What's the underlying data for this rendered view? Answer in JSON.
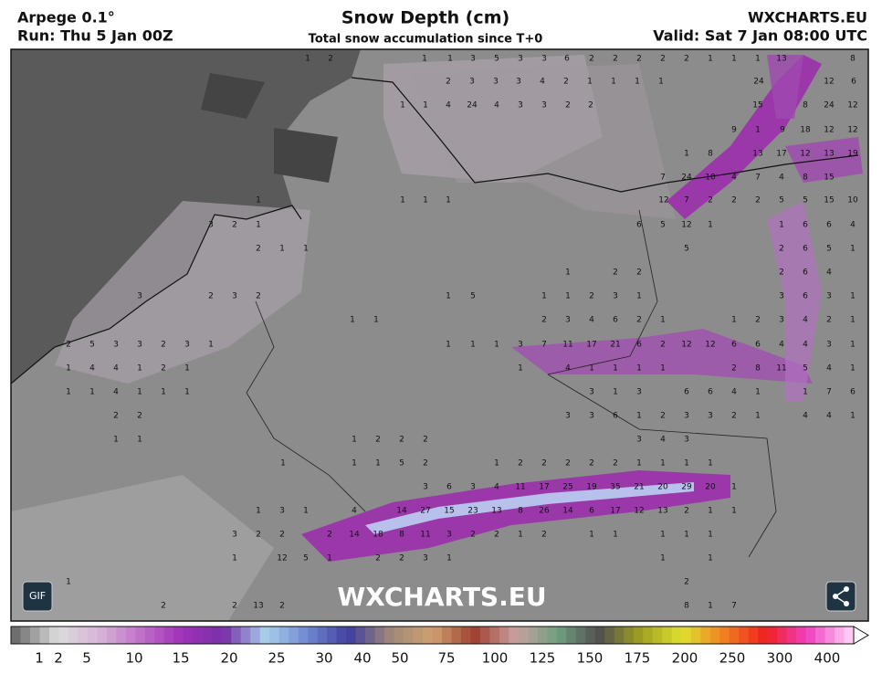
{
  "header": {
    "model": "Arpege 0.1°",
    "run": "Run: Thu 5 Jan 00Z",
    "title": "Snow Depth (cm)",
    "subtitle": "Total snow accumulation since T+0",
    "site": "WXCHARTS.EU",
    "valid": "Valid: Sat 7 Jan 08:00 UTC"
  },
  "map": {
    "watermark": "WXCHARTS.EU",
    "labels": [
      [
        1,
        2,
        1,
        1,
        3,
        5,
        3,
        3,
        6,
        2,
        2,
        2,
        2,
        2,
        1,
        1,
        1,
        13,
        8
      ],
      [
        2,
        3,
        3,
        3,
        4,
        2,
        1,
        1,
        1,
        1,
        24,
        12,
        6
      ],
      [
        1,
        1,
        4,
        24,
        4,
        3,
        3,
        2,
        2,
        15,
        8,
        24,
        12
      ],
      [
        9,
        1,
        9,
        18,
        12,
        12
      ],
      [
        1,
        8,
        13,
        17,
        12,
        13,
        19
      ],
      [
        7,
        24,
        10,
        4,
        7,
        4,
        8,
        15
      ],
      [
        1,
        1,
        1,
        1,
        12,
        7,
        2,
        2,
        2,
        5,
        5,
        15,
        10
      ],
      [
        3,
        2,
        1,
        6,
        5,
        12,
        1,
        1,
        6,
        6,
        4
      ],
      [
        2,
        1,
        1,
        5,
        2,
        6,
        5,
        1
      ],
      [
        1,
        2,
        2,
        2,
        6,
        4
      ],
      [
        3,
        2,
        3,
        2,
        1,
        5,
        1,
        1,
        2,
        3,
        1,
        3,
        6,
        3,
        1
      ],
      [
        1,
        1,
        2,
        3,
        4,
        6,
        2,
        1,
        1,
        2,
        3,
        4,
        2,
        1
      ],
      [
        2,
        5,
        3,
        3,
        2,
        3,
        1,
        1,
        1,
        1,
        3,
        7,
        11,
        17,
        21,
        6,
        2,
        12,
        12,
        6,
        6,
        4,
        4,
        3,
        1
      ],
      [
        1,
        4,
        4,
        1,
        2,
        1,
        1,
        4,
        1,
        1,
        1,
        1,
        2,
        8,
        11,
        5,
        4,
        1
      ],
      [
        1,
        1,
        4,
        1,
        1,
        1,
        3,
        1,
        3,
        6,
        6,
        4,
        1,
        1,
        7,
        6
      ],
      [
        2,
        2,
        3,
        3,
        6,
        1,
        2,
        3,
        3,
        2,
        1,
        4,
        4,
        1
      ],
      [
        1,
        1,
        1,
        2,
        2,
        2,
        3,
        4,
        3
      ],
      [
        1,
        1,
        1,
        5,
        2,
        1,
        2,
        2,
        2,
        2,
        2,
        1,
        1,
        1,
        1
      ],
      [
        3,
        6,
        3,
        4,
        11,
        17,
        25,
        19,
        35,
        21,
        20,
        29,
        20,
        1
      ],
      [
        1,
        3,
        1,
        4,
        14,
        27,
        15,
        23,
        13,
        8,
        26,
        14,
        6,
        17,
        12,
        13,
        2,
        1,
        1
      ],
      [
        3,
        2,
        2,
        2,
        14,
        18,
        8,
        11,
        3,
        2,
        2,
        1,
        2,
        1,
        1,
        1,
        1,
        1
      ],
      [
        1,
        12,
        5,
        1,
        2,
        2,
        3,
        1,
        1,
        1
      ],
      [
        1,
        2
      ],
      [
        2,
        2,
        13,
        2,
        8,
        1,
        7
      ]
    ]
  },
  "controls": {
    "gif": "GIF"
  },
  "legend": {
    "labels": [
      1,
      2,
      5,
      10,
      15,
      20,
      25,
      30,
      40,
      50,
      75,
      100,
      125,
      150,
      175,
      200,
      250,
      300,
      400
    ],
    "colors": [
      "#6e6e6e",
      "#dcdcdc",
      "#d8b4d8",
      "#c070c8",
      "#a030b8",
      "#7830a8",
      "#a8d0ec",
      "#7088d0",
      "#4040a0",
      "#a08878",
      "#d0a070",
      "#a04030",
      "#c8a0a0",
      "#70a080",
      "#505050",
      "#a0a020",
      "#e0e030",
      "#f08020",
      "#f02020",
      "#f040c0",
      "#ffc8f4"
    ]
  }
}
